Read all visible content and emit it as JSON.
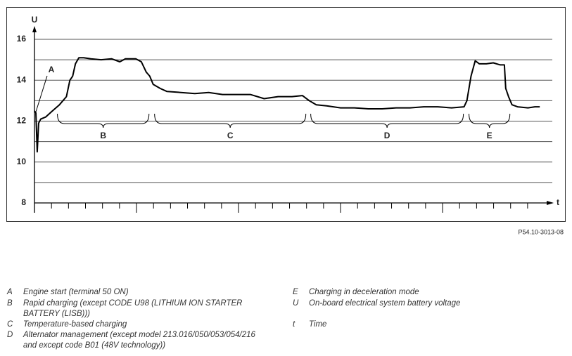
{
  "chart_data": {
    "type": "line",
    "y_label": "U",
    "x_label": "t",
    "color": "#000000",
    "ylim": [
      8,
      16
    ],
    "yticks": [
      8,
      10,
      12,
      14,
      16
    ],
    "ygrid": [
      9,
      11,
      13,
      15
    ],
    "grid": true,
    "xlim": [
      0,
      740
    ],
    "xtick_marks": [
      0,
      24.5,
      49,
      73.5,
      98,
      122.5,
      147,
      171.5,
      196,
      220.5,
      245,
      269.5,
      294,
      318.5,
      343,
      367.5,
      392,
      416.5,
      441,
      465.5,
      490,
      514.5,
      539,
      563.5,
      588,
      612.5,
      637,
      661.5,
      686,
      710.5
    ],
    "x": [
      0,
      2,
      4,
      6,
      9,
      16,
      26,
      36,
      46,
      51,
      55,
      59,
      64,
      71,
      81,
      96,
      111,
      123,
      131,
      146,
      154,
      161,
      166,
      171,
      181,
      191,
      211,
      231,
      251,
      271,
      291,
      311,
      331,
      351,
      371,
      386,
      396,
      406,
      421,
      441,
      461,
      481,
      501,
      521,
      541,
      561,
      581,
      601,
      619,
      623,
      629,
      635,
      641,
      651,
      661,
      671,
      677,
      679,
      683,
      688,
      696,
      711,
      721,
      728
    ],
    "values": [
      12.5,
      12.4,
      10.5,
      11.9,
      12.1,
      12.2,
      12.5,
      12.8,
      13.2,
      14.0,
      14.2,
      14.8,
      15.1,
      15.1,
      15.05,
      15.0,
      15.05,
      14.9,
      15.05,
      15.05,
      14.9,
      14.4,
      14.2,
      13.8,
      13.6,
      13.45,
      13.4,
      13.35,
      13.4,
      13.3,
      13.3,
      13.3,
      13.1,
      13.2,
      13.2,
      13.25,
      13.0,
      12.8,
      12.75,
      12.65,
      12.65,
      12.6,
      12.6,
      12.65,
      12.65,
      12.7,
      12.7,
      12.65,
      12.7,
      13.0,
      14.2,
      14.95,
      14.8,
      14.8,
      14.85,
      14.75,
      14.75,
      13.6,
      13.2,
      12.8,
      12.7,
      12.65,
      12.7,
      12.7
    ],
    "annotation": {
      "label": "A",
      "x": 2,
      "y": 12.45
    },
    "spans": [
      {
        "label": "B",
        "from": 33,
        "to": 165
      },
      {
        "label": "C",
        "from": 173,
        "to": 391
      },
      {
        "label": "D",
        "from": 398,
        "to": 618
      },
      {
        "label": "E",
        "from": 626,
        "to": 685
      }
    ],
    "figure_id": "P54.10-3013-08"
  },
  "notes": [
    {
      "key": "A",
      "lines": [
        "Engine start (terminal 50 ON)"
      ]
    },
    {
      "key": "B",
      "lines": [
        "Rapid charging (except CODE U98 (LITHIUM ION STARTER",
        "BATTERY (LISB)))"
      ]
    },
    {
      "key": "C",
      "lines": [
        "Temperature-based charging"
      ]
    },
    {
      "key": "D",
      "lines": [
        "Alternator management (except model 213.016/050/053/054/216",
        "and except code B01 (48V technology))"
      ]
    },
    {
      "key": "E",
      "lines": [
        "Charging in deceleration mode"
      ]
    },
    {
      "key": "U",
      "lines": [
        "On-board electrical system battery voltage"
      ]
    },
    {
      "key": "t",
      "lines": [
        "Time"
      ]
    }
  ]
}
